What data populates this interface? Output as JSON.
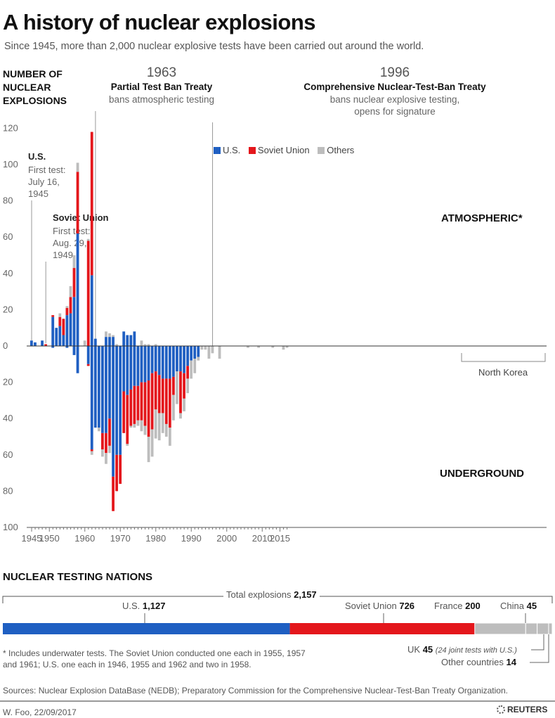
{
  "header": {
    "title": "A history of nuclear explosions",
    "subtitle": "Since 1945, more than 2,000 nuclear explosive tests have been carried out around the world."
  },
  "colors": {
    "us": "#1f5fc2",
    "soviet": "#e4171c",
    "others": "#bdbdbd"
  },
  "chart_data": [
    {
      "type": "bar",
      "stacked": true,
      "title": "",
      "ylabel": "NUMBER OF NUCLEAR EXPLOSIONS",
      "ylim_atmospheric": [
        0,
        120
      ],
      "ylim_underground": [
        0,
        100
      ],
      "y_ticks": [
        0,
        20,
        40,
        60,
        80,
        100,
        120
      ],
      "y_ticks_underground": [
        20,
        40,
        60,
        80,
        100
      ],
      "x_ticks": [
        1945,
        1950,
        1960,
        1970,
        1980,
        1990,
        2000,
        2010,
        2015
      ],
      "legend": [
        "U.S.",
        "Soviet Union",
        "Others"
      ],
      "legend_position": "top-center",
      "zone_labels": {
        "atmospheric": "ATMOSPHERIC*",
        "underground": "UNDERGROUND"
      },
      "years": [
        1945,
        1946,
        1948,
        1949,
        1951,
        1952,
        1953,
        1954,
        1955,
        1956,
        1957,
        1958,
        1959,
        1960,
        1961,
        1962,
        1963,
        1964,
        1965,
        1966,
        1967,
        1968,
        1969,
        1970,
        1971,
        1972,
        1973,
        1974,
        1975,
        1976,
        1977,
        1978,
        1979,
        1980,
        1981,
        1982,
        1983,
        1984,
        1985,
        1986,
        1987,
        1988,
        1989,
        1990,
        1991,
        1992,
        1993,
        1994,
        1995,
        1996,
        1998,
        2006,
        2009,
        2013,
        2016,
        2017
      ],
      "series": [
        {
          "name": "U.S.",
          "atmospheric": [
            3,
            2,
            3,
            0,
            16,
            10,
            11,
            6,
            17,
            18,
            27,
            62,
            0,
            0,
            0,
            39,
            4,
            0,
            0,
            5,
            5,
            5,
            0,
            0,
            8,
            6,
            6,
            8,
            0,
            0,
            0,
            0,
            0,
            0,
            0,
            0,
            0,
            0,
            0,
            0,
            0,
            0,
            0,
            0,
            0,
            0,
            0,
            0,
            0,
            0,
            0,
            0,
            0,
            0,
            0,
            0
          ],
          "underground": [
            0,
            0,
            0,
            0,
            1,
            0,
            0,
            0,
            1,
            0,
            5,
            15,
            0,
            0,
            10,
            57,
            45,
            45,
            48,
            48,
            40,
            72,
            60,
            60,
            25,
            27,
            24,
            22,
            22,
            20,
            20,
            19,
            15,
            14,
            16,
            18,
            18,
            18,
            17,
            14,
            14,
            15,
            11,
            8,
            7,
            6,
            0,
            0,
            0,
            0,
            0,
            0,
            0,
            0,
            0,
            0
          ]
        },
        {
          "name": "Soviet Union",
          "atmospheric": [
            0,
            0,
            0,
            1,
            1,
            0,
            5,
            9,
            4,
            9,
            16,
            34,
            0,
            0,
            58,
            79,
            0,
            0,
            0,
            0,
            0,
            0,
            0,
            0,
            0,
            0,
            0,
            0,
            0,
            0,
            0,
            0,
            0,
            0,
            0,
            0,
            0,
            0,
            0,
            0,
            0,
            0,
            0,
            0,
            0,
            0,
            0,
            0,
            0,
            0,
            0,
            0,
            0,
            0,
            0,
            0
          ],
          "underground": [
            0,
            0,
            0,
            0,
            0,
            0,
            0,
            0,
            0,
            0,
            0,
            0,
            0,
            0,
            1,
            1,
            0,
            0,
            9,
            11,
            15,
            19,
            20,
            16,
            23,
            27,
            20,
            21,
            19,
            21,
            24,
            31,
            31,
            21,
            21,
            19,
            25,
            27,
            10,
            0,
            23,
            14,
            7,
            0,
            0,
            0,
            0,
            0,
            0,
            0,
            0,
            0,
            0,
            0,
            0,
            0
          ]
        },
        {
          "name": "Others",
          "atmospheric": [
            0,
            0,
            0,
            0,
            0,
            0,
            2,
            0,
            1,
            6,
            7,
            5,
            0,
            3,
            1,
            0,
            0,
            0,
            0,
            3,
            2,
            1,
            1,
            0,
            0,
            0,
            0,
            0,
            0,
            3,
            1,
            1,
            0,
            1,
            0,
            0,
            0,
            0,
            0,
            0,
            0,
            0,
            0,
            0,
            0,
            0,
            0,
            0,
            0,
            0,
            0,
            0,
            0,
            0,
            0,
            0
          ],
          "underground": [
            0,
            0,
            0,
            0,
            0,
            0,
            0,
            0,
            0,
            0,
            0,
            0,
            0,
            0,
            0,
            2,
            0,
            2,
            4,
            6,
            4,
            0,
            0,
            0,
            0,
            1,
            1,
            2,
            3,
            6,
            5,
            14,
            15,
            16,
            15,
            11,
            7,
            10,
            14,
            18,
            3,
            7,
            8,
            10,
            8,
            2,
            2,
            2,
            7,
            4,
            7,
            1,
            1,
            1,
            2,
            1
          ]
        }
      ],
      "annotations": [
        {
          "year": "1963",
          "name": "Partial Test Ban Treaty",
          "desc": "bans atmospheric testing"
        },
        {
          "year": "1996",
          "name": "Comprehensive Nuclear-Test-Ban Treaty",
          "desc": "bans nuclear explosive testing,",
          "desc2": "opens for signature"
        },
        {
          "name": "U.S.",
          "l1": "First test:",
          "l2": "July 16,",
          "l3": "1945"
        },
        {
          "name": "Soviet Union",
          "l1": "First test:",
          "l2": "Aug. 29,",
          "l3": "1949"
        },
        {
          "name": "North Korea"
        }
      ]
    },
    {
      "type": "bar",
      "stacked": true,
      "orientation": "horizontal",
      "title": "NUCLEAR TESTING NATIONS",
      "total_label": "Total explosions",
      "total_value": "2,157",
      "categories": [
        "U.S.",
        "Soviet Union",
        "France",
        "China",
        "UK",
        "Other countries"
      ],
      "values": [
        1127,
        726,
        200,
        45,
        45,
        14
      ],
      "value_labels": [
        "1,127",
        "726",
        "200",
        "45",
        "45",
        "14"
      ],
      "uk_note": "(24 joint tests with U.S.)"
    }
  ],
  "footer": {
    "note1": "* Includes underwater tests. The Soviet Union conducted one each in 1955, 1957",
    "note2": "and 1961; U.S. one each in 1946, 1955 and 1962 and two in 1958.",
    "sources": "Sources: Nuclear Explosion DataBase (NEDB); Preparatory Commission for the Comprehensive Nuclear-Test-Ban Treaty Organization.",
    "credit": "W. Foo, 22/09/2017",
    "brand": "REUTERS"
  }
}
